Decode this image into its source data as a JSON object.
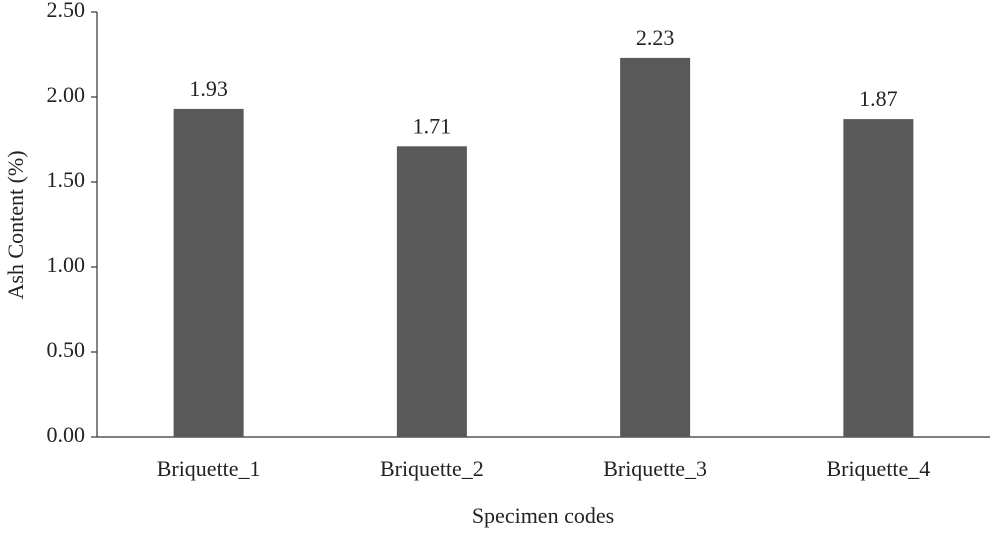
{
  "chart_data": {
    "type": "bar",
    "categories": [
      "Briquette_1",
      "Briquette_2",
      "Briquette_3",
      "Briquette_4"
    ],
    "values": [
      1.93,
      1.71,
      2.23,
      1.87
    ],
    "color": "#595959",
    "ylabel": "Ash Content (%)",
    "xlabel": "Specimen codes",
    "ylim": [
      0,
      2.5
    ],
    "yticks": [
      {
        "value": 0,
        "label": "0.00"
      },
      {
        "value": 0.5,
        "label": "0.50"
      },
      {
        "value": 1,
        "label": "1.00"
      },
      {
        "value": 1.5,
        "label": "1.50"
      },
      {
        "value": 2,
        "label": "2.00"
      },
      {
        "value": 2.5,
        "label": "2.50"
      }
    ],
    "grid": false
  }
}
